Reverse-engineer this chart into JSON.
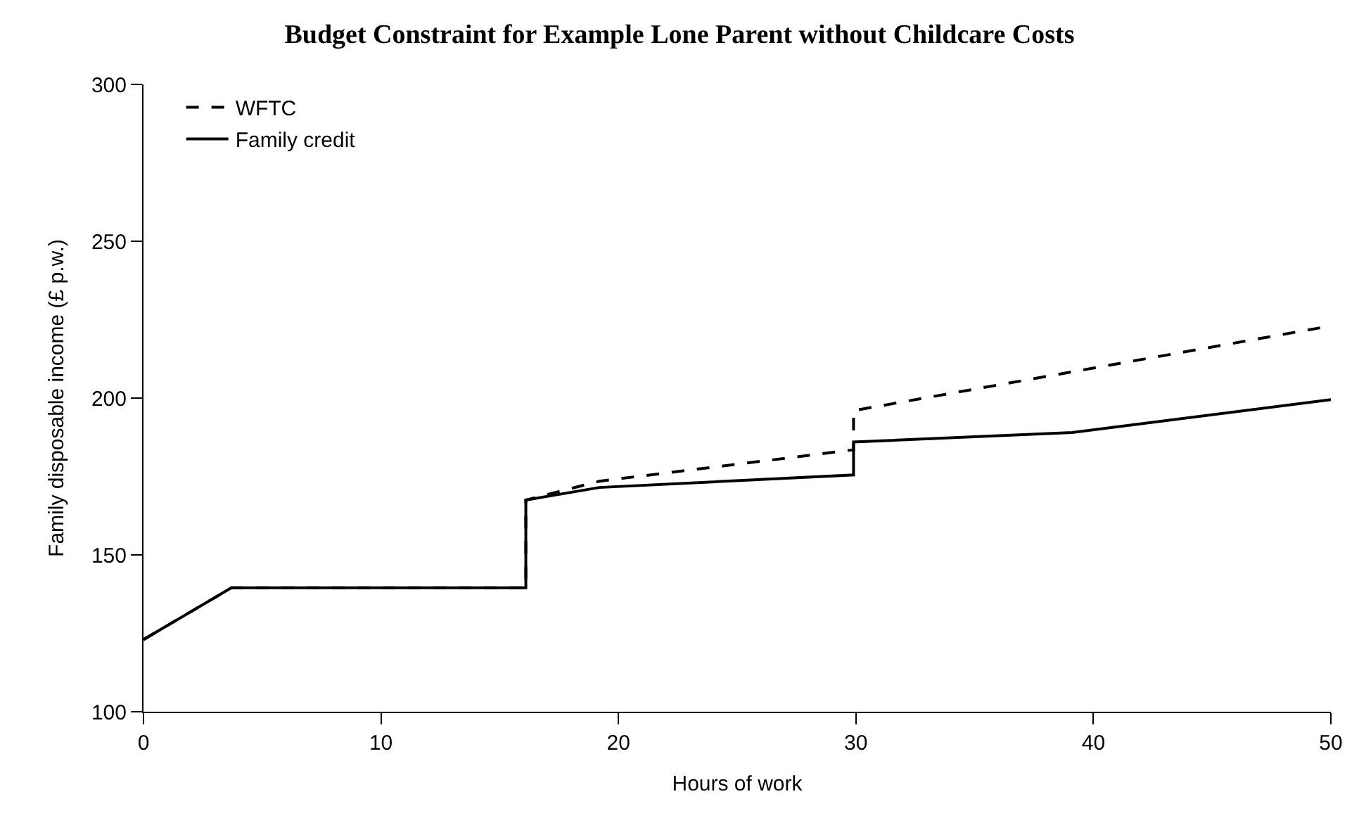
{
  "chart_data": {
    "type": "line",
    "title": "Budget Constraint for Example Lone Parent without Childcare Costs",
    "xlabel": "Hours of work",
    "ylabel": "Family disposable income (£ p.w.)",
    "xlim": [
      0,
      50
    ],
    "xticks": [
      0,
      10,
      20,
      30,
      40,
      50
    ],
    "ylim": [
      100,
      300
    ],
    "yticks": [
      100,
      150,
      200,
      250,
      300
    ],
    "legend": "top left",
    "marker": "none",
    "series": [
      {
        "name": "WFTC",
        "color": "#000000",
        "line_style": "dashed",
        "x": [
          0,
          3.7,
          16.1,
          16.1,
          19.2,
          29.9,
          29.9,
          50
        ],
        "values": [
          123,
          139.5,
          139.5,
          167.5,
          173.5,
          183.5,
          196,
          223
        ]
      },
      {
        "name": "Family credit",
        "color": "#000000",
        "line_style": "solid",
        "x": [
          0,
          3.7,
          16.1,
          16.1,
          19.2,
          29.9,
          29.9,
          39.1,
          50
        ],
        "values": [
          123,
          139.5,
          139.5,
          167.5,
          171.5,
          175.5,
          186,
          189,
          199.5
        ]
      }
    ]
  }
}
